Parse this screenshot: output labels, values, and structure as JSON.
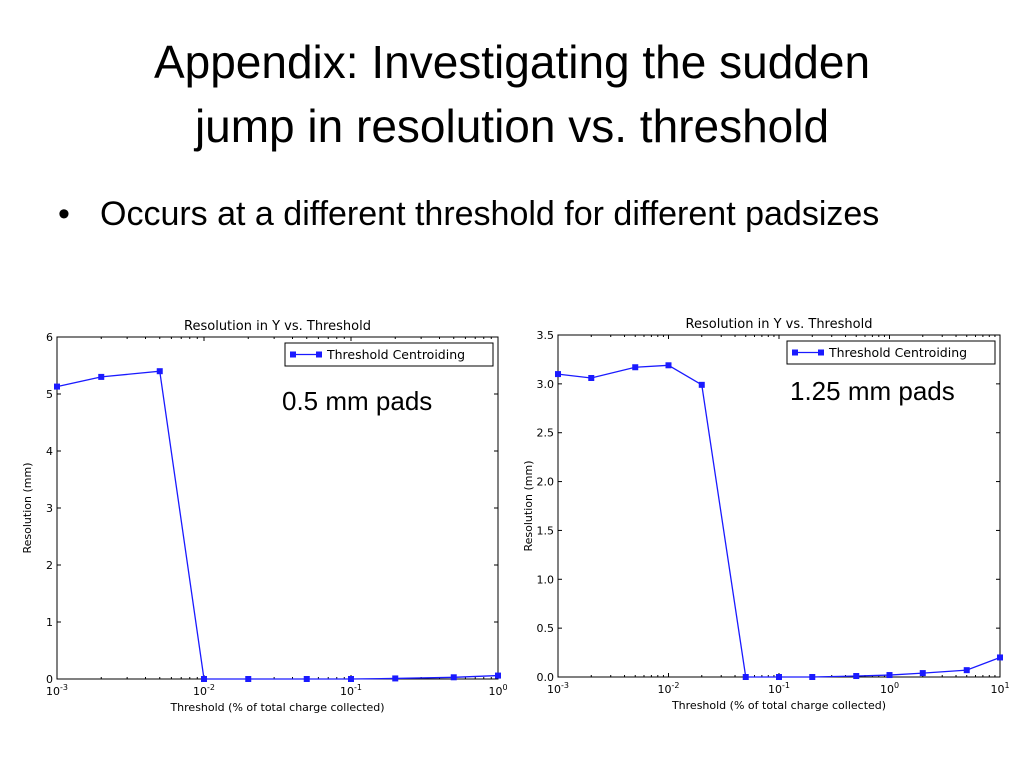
{
  "slide": {
    "title_line1": "Appendix: Investigating the sudden",
    "title_line2": "jump in resolution vs. threshold",
    "bullet_symbol": "•",
    "bullet_text": "Occurs at a different threshold for different padsizes"
  },
  "chart_data": [
    {
      "type": "line",
      "title": "Resolution in Y vs. Threshold",
      "xlabel": "Threshold (% of total charge collected)",
      "ylabel": "Resolution (mm)",
      "xscale": "log",
      "xlim": [
        0.001,
        1
      ],
      "ylim": [
        0,
        6
      ],
      "xticks": [
        {
          "value": 0.001,
          "base": "10",
          "exp": "-3"
        },
        {
          "value": 0.01,
          "base": "10",
          "exp": "-2"
        },
        {
          "value": 0.1,
          "base": "10",
          "exp": "-1"
        },
        {
          "value": 1,
          "base": "10",
          "exp": "0"
        }
      ],
      "yticks": [
        {
          "value": 0,
          "label": "0"
        },
        {
          "value": 1,
          "label": "1"
        },
        {
          "value": 2,
          "label": "2"
        },
        {
          "value": 3,
          "label": "3"
        },
        {
          "value": 4,
          "label": "4"
        },
        {
          "value": 5,
          "label": "5"
        },
        {
          "value": 6,
          "label": "6"
        }
      ],
      "grid": false,
      "legend_position": "top-right",
      "annotation": "0.5 mm pads",
      "series": [
        {
          "name": "Threshold Centroiding",
          "color": "#1a1aff",
          "marker": "square",
          "x": [
            0.001,
            0.002,
            0.005,
            0.01,
            0.02,
            0.05,
            0.1,
            0.2,
            0.5,
            1
          ],
          "y": [
            5.13,
            5.3,
            5.4,
            0.0,
            0.0,
            0.0,
            0.0,
            0.01,
            0.03,
            0.06
          ]
        }
      ]
    },
    {
      "type": "line",
      "title": "Resolution in Y vs. Threshold",
      "xlabel": "Threshold (% of total charge collected)",
      "ylabel": "Resolution (mm)",
      "xscale": "log",
      "xlim": [
        0.001,
        10
      ],
      "ylim": [
        0,
        3.5
      ],
      "xticks": [
        {
          "value": 0.001,
          "base": "10",
          "exp": "-3"
        },
        {
          "value": 0.01,
          "base": "10",
          "exp": "-2"
        },
        {
          "value": 0.1,
          "base": "10",
          "exp": "-1"
        },
        {
          "value": 1,
          "base": "10",
          "exp": "0"
        },
        {
          "value": 10,
          "base": "10",
          "exp": "1"
        }
      ],
      "yticks": [
        {
          "value": 0,
          "label": "0.0"
        },
        {
          "value": 0.5,
          "label": "0.5"
        },
        {
          "value": 1,
          "label": "1.0"
        },
        {
          "value": 1.5,
          "label": "1.5"
        },
        {
          "value": 2,
          "label": "2.0"
        },
        {
          "value": 2.5,
          "label": "2.5"
        },
        {
          "value": 3,
          "label": "3.0"
        },
        {
          "value": 3.5,
          "label": "3.5"
        }
      ],
      "grid": false,
      "legend_position": "top-right",
      "annotation": "1.25 mm pads",
      "series": [
        {
          "name": "Threshold Centroiding",
          "color": "#1a1aff",
          "marker": "square",
          "x": [
            0.001,
            0.002,
            0.005,
            0.01,
            0.02,
            0.05,
            0.1,
            0.2,
            0.5,
            1,
            2,
            5,
            10
          ],
          "y": [
            3.1,
            3.06,
            3.17,
            3.19,
            2.99,
            0.0,
            0.0,
            0.0,
            0.01,
            0.02,
            0.04,
            0.07,
            0.2
          ]
        }
      ]
    }
  ]
}
